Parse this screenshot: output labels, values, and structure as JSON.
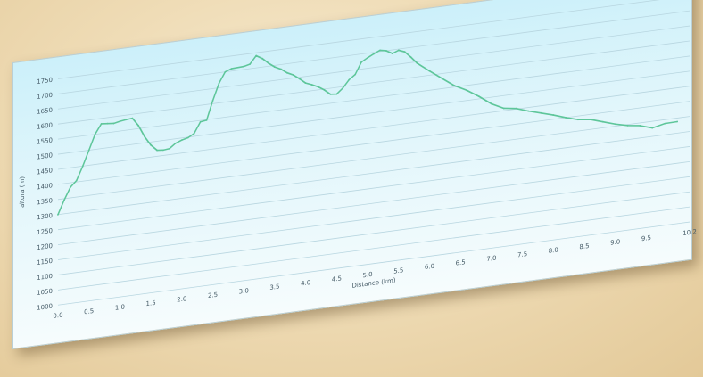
{
  "chart_data": {
    "type": "line",
    "title": "",
    "xlabel": "Distance (km)",
    "ylabel": "altura (m)",
    "xlim": [
      0,
      10.2
    ],
    "ylim": [
      1000,
      1780
    ],
    "grid": true,
    "legend": "none",
    "colors": {
      "line": "#5ec69a",
      "grid": "#b8d6e0",
      "background_top": "#ccf0fa",
      "background_bottom": "#f6fcfd"
    },
    "x_ticks": [
      "0.0",
      "0.5",
      "1.0",
      "1.5",
      "2.0",
      "2.5",
      "3.0",
      "3.5",
      "4.0",
      "4.5",
      "5.0",
      "5.5",
      "6.0",
      "6.5",
      "7.0",
      "7.5",
      "8.0",
      "8.5",
      "9.0",
      "9.5",
      "10.2"
    ],
    "y_ticks": [
      "1000",
      "1050",
      "1100",
      "1150",
      "1200",
      "1250",
      "1300",
      "1350",
      "1400",
      "1450",
      "1500",
      "1550",
      "1600",
      "1650",
      "1700",
      "1750"
    ],
    "series": [
      {
        "values": [
          [
            0.0,
            1300
          ],
          [
            0.1,
            1345
          ],
          [
            0.2,
            1385
          ],
          [
            0.3,
            1405
          ],
          [
            0.4,
            1450
          ],
          [
            0.5,
            1500
          ],
          [
            0.6,
            1550
          ],
          [
            0.7,
            1582
          ],
          [
            0.8,
            1580
          ],
          [
            0.9,
            1578
          ],
          [
            1.0,
            1582
          ],
          [
            1.1,
            1585
          ],
          [
            1.2,
            1587
          ],
          [
            1.3,
            1560
          ],
          [
            1.4,
            1520
          ],
          [
            1.5,
            1490
          ],
          [
            1.6,
            1470
          ],
          [
            1.7,
            1468
          ],
          [
            1.8,
            1470
          ],
          [
            1.9,
            1485
          ],
          [
            2.0,
            1493
          ],
          [
            2.1,
            1498
          ],
          [
            2.2,
            1510
          ],
          [
            2.3,
            1545
          ],
          [
            2.4,
            1548
          ],
          [
            2.5,
            1610
          ],
          [
            2.6,
            1665
          ],
          [
            2.7,
            1700
          ],
          [
            2.8,
            1708
          ],
          [
            3.0,
            1710
          ],
          [
            3.1,
            1715
          ],
          [
            3.2,
            1740
          ],
          [
            3.3,
            1728
          ],
          [
            3.4,
            1710
          ],
          [
            3.5,
            1695
          ],
          [
            3.6,
            1685
          ],
          [
            3.7,
            1670
          ],
          [
            3.8,
            1660
          ],
          [
            3.9,
            1645
          ],
          [
            4.0,
            1628
          ],
          [
            4.1,
            1620
          ],
          [
            4.2,
            1610
          ],
          [
            4.3,
            1597
          ],
          [
            4.4,
            1580
          ],
          [
            4.5,
            1578
          ],
          [
            4.6,
            1595
          ],
          [
            4.7,
            1620
          ],
          [
            4.8,
            1635
          ],
          [
            4.9,
            1673
          ],
          [
            5.0,
            1685
          ],
          [
            5.1,
            1695
          ],
          [
            5.2,
            1704
          ],
          [
            5.3,
            1700
          ],
          [
            5.4,
            1688
          ],
          [
            5.5,
            1696
          ],
          [
            5.6,
            1688
          ],
          [
            5.7,
            1668
          ],
          [
            5.8,
            1645
          ],
          [
            6.0,
            1614
          ],
          [
            6.2,
            1584
          ],
          [
            6.4,
            1555
          ],
          [
            6.6,
            1534
          ],
          [
            6.8,
            1508
          ],
          [
            7.0,
            1478
          ],
          [
            7.2,
            1458
          ],
          [
            7.4,
            1452
          ],
          [
            7.6,
            1438
          ],
          [
            7.8,
            1426
          ],
          [
            8.0,
            1414
          ],
          [
            8.2,
            1400
          ],
          [
            8.4,
            1388
          ],
          [
            8.6,
            1383
          ],
          [
            8.8,
            1370
          ],
          [
            9.0,
            1357
          ],
          [
            9.2,
            1347
          ],
          [
            9.4,
            1341
          ],
          [
            9.6,
            1328
          ],
          [
            9.8,
            1337
          ],
          [
            10.0,
            1338
          ]
        ]
      }
    ]
  }
}
